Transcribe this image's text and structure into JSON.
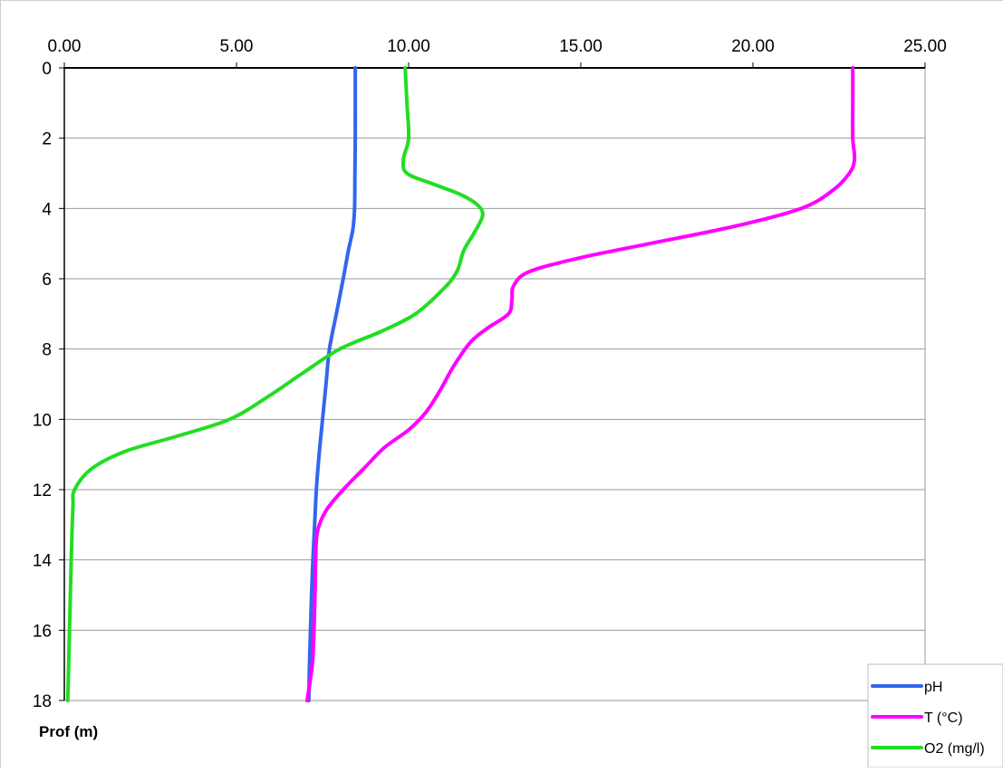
{
  "chart_data": {
    "type": "line",
    "xlabel": "",
    "ylabel": "Prof (m)",
    "x_axis_position": "top",
    "y_axis_inverted": true,
    "xlim": [
      0,
      25
    ],
    "ylim": [
      0,
      18
    ],
    "x_ticks": [
      "0.00",
      "5.00",
      "10.00",
      "15.00",
      "20.00",
      "25.00"
    ],
    "y_ticks": [
      "0",
      "2",
      "4",
      "6",
      "8",
      "10",
      "12",
      "14",
      "16",
      "18"
    ],
    "grid": true,
    "legend": "bottom-right",
    "series": [
      {
        "name": "pH",
        "color": "#3366ee",
        "points": [
          [
            8.45,
            0
          ],
          [
            8.45,
            1
          ],
          [
            8.45,
            2
          ],
          [
            8.44,
            3
          ],
          [
            8.43,
            4
          ],
          [
            8.38,
            4.6
          ],
          [
            8.25,
            5.2
          ],
          [
            8.1,
            6
          ],
          [
            7.9,
            7
          ],
          [
            7.7,
            8
          ],
          [
            7.6,
            9
          ],
          [
            7.5,
            10
          ],
          [
            7.4,
            11
          ],
          [
            7.32,
            12
          ],
          [
            7.27,
            13
          ],
          [
            7.22,
            14
          ],
          [
            7.18,
            15
          ],
          [
            7.15,
            16
          ],
          [
            7.12,
            17
          ],
          [
            7.1,
            18
          ]
        ]
      },
      {
        "name": "T (°C)",
        "color": "#ff00ff",
        "points": [
          [
            22.9,
            0
          ],
          [
            22.9,
            1
          ],
          [
            22.9,
            2
          ],
          [
            22.95,
            2.6
          ],
          [
            22.8,
            3
          ],
          [
            22.3,
            3.5
          ],
          [
            21.4,
            4
          ],
          [
            19.5,
            4.5
          ],
          [
            17.0,
            5
          ],
          [
            15.0,
            5.4
          ],
          [
            13.5,
            5.8
          ],
          [
            13.05,
            6.2
          ],
          [
            13.0,
            6.6
          ],
          [
            12.9,
            7
          ],
          [
            12.3,
            7.4
          ],
          [
            11.8,
            7.8
          ],
          [
            11.3,
            8.5
          ],
          [
            10.9,
            9.2
          ],
          [
            10.5,
            9.8
          ],
          [
            10.0,
            10.3
          ],
          [
            9.3,
            10.8
          ],
          [
            8.7,
            11.4
          ],
          [
            8.1,
            12
          ],
          [
            7.6,
            12.6
          ],
          [
            7.35,
            13.2
          ],
          [
            7.3,
            14
          ],
          [
            7.28,
            15
          ],
          [
            7.25,
            16
          ],
          [
            7.2,
            17
          ],
          [
            7.05,
            18
          ]
        ]
      },
      {
        "name": "O2 (mg/l)",
        "color": "#22dd22",
        "points": [
          [
            9.9,
            0
          ],
          [
            9.95,
            1
          ],
          [
            10.0,
            2
          ],
          [
            9.85,
            2.6
          ],
          [
            9.95,
            3
          ],
          [
            10.7,
            3.3
          ],
          [
            11.5,
            3.6
          ],
          [
            12.0,
            3.9
          ],
          [
            12.15,
            4.2
          ],
          [
            11.9,
            4.7
          ],
          [
            11.6,
            5.2
          ],
          [
            11.4,
            5.8
          ],
          [
            11.0,
            6.3
          ],
          [
            10.2,
            7
          ],
          [
            9.2,
            7.5
          ],
          [
            8.0,
            8
          ],
          [
            6.9,
            8.7
          ],
          [
            6.0,
            9.3
          ],
          [
            4.8,
            10
          ],
          [
            3.2,
            10.5
          ],
          [
            1.8,
            10.9
          ],
          [
            0.8,
            11.4
          ],
          [
            0.3,
            12
          ],
          [
            0.25,
            12.5
          ],
          [
            0.2,
            14
          ],
          [
            0.15,
            16
          ],
          [
            0.1,
            18
          ]
        ]
      }
    ]
  }
}
